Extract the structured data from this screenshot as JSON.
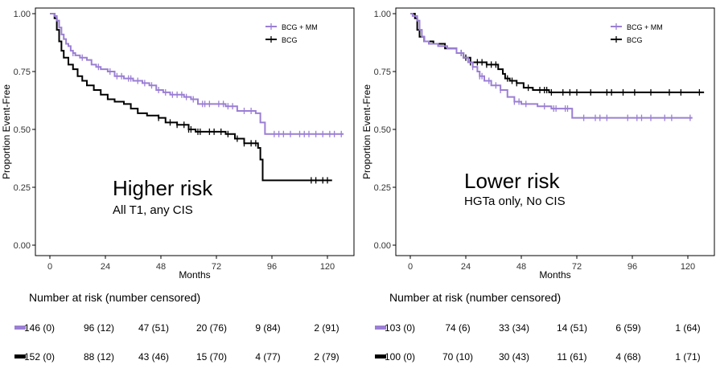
{
  "colors": {
    "bcg_mm": "#9b7fd4",
    "bcg": "#000000",
    "axis": "#000000"
  },
  "chart_data": [
    {
      "type": "line",
      "subtype": "kaplan-meier",
      "xlabel": "Months",
      "ylabel": "Proportion Event-Free",
      "xlim": [
        0,
        126
      ],
      "ylim": [
        0,
        1
      ],
      "xticks": [
        0,
        24,
        48,
        72,
        96,
        120
      ],
      "yticks": [
        0.0,
        0.25,
        0.5,
        0.75,
        1.0
      ],
      "ytick_labels": [
        "0.00",
        "0.25",
        "0.50",
        "0.75",
        "1.00"
      ],
      "annotation_title": "Higher risk",
      "annotation_subtitle": "All T1, any CIS",
      "legend_position": "top-right",
      "series": [
        {
          "name": "BCG + MM",
          "color": "#9b7fd4",
          "steps": [
            [
              0,
              1.0
            ],
            [
              1,
              1.0
            ],
            [
              2,
              0.99
            ],
            [
              3,
              0.97
            ],
            [
              4,
              0.94
            ],
            [
              5,
              0.91
            ],
            [
              6,
              0.89
            ],
            [
              7,
              0.87
            ],
            [
              8,
              0.86
            ],
            [
              9,
              0.84
            ],
            [
              10,
              0.83
            ],
            [
              11,
              0.82
            ],
            [
              13,
              0.81
            ],
            [
              16,
              0.8
            ],
            [
              18,
              0.78
            ],
            [
              20,
              0.77
            ],
            [
              22,
              0.76
            ],
            [
              25,
              0.75
            ],
            [
              28,
              0.73
            ],
            [
              32,
              0.72
            ],
            [
              36,
              0.71
            ],
            [
              40,
              0.7
            ],
            [
              43,
              0.69
            ],
            [
              46,
              0.67
            ],
            [
              49,
              0.66
            ],
            [
              52,
              0.65
            ],
            [
              58,
              0.64
            ],
            [
              61,
              0.63
            ],
            [
              64,
              0.61
            ],
            [
              76,
              0.6
            ],
            [
              81,
              0.58
            ],
            [
              89,
              0.57
            ],
            [
              91,
              0.53
            ],
            [
              93,
              0.48
            ],
            [
              127,
              0.48
            ]
          ],
          "censor_times": [
            10,
            14,
            21,
            26,
            29,
            31,
            34,
            35,
            38,
            41,
            44,
            47,
            50,
            53,
            55,
            57,
            59,
            62,
            66,
            67,
            69,
            73,
            75,
            77,
            79,
            84,
            87,
            97,
            99,
            101,
            104,
            108,
            110,
            112,
            115,
            118,
            121,
            123,
            126
          ]
        },
        {
          "name": "BCG",
          "color": "#000000",
          "steps": [
            [
              0,
              1.0
            ],
            [
              1,
              1.0
            ],
            [
              2,
              0.98
            ],
            [
              3,
              0.93
            ],
            [
              4,
              0.88
            ],
            [
              5,
              0.84
            ],
            [
              6,
              0.81
            ],
            [
              8,
              0.78
            ],
            [
              10,
              0.76
            ],
            [
              12,
              0.73
            ],
            [
              14,
              0.71
            ],
            [
              16,
              0.69
            ],
            [
              19,
              0.67
            ],
            [
              22,
              0.65
            ],
            [
              25,
              0.63
            ],
            [
              28,
              0.62
            ],
            [
              32,
              0.61
            ],
            [
              35,
              0.59
            ],
            [
              38,
              0.57
            ],
            [
              42,
              0.56
            ],
            [
              47,
              0.55
            ],
            [
              50,
              0.53
            ],
            [
              55,
              0.52
            ],
            [
              60,
              0.5
            ],
            [
              63,
              0.49
            ],
            [
              76,
              0.48
            ],
            [
              80,
              0.46
            ],
            [
              84,
              0.44
            ],
            [
              90,
              0.42
            ],
            [
              91,
              0.37
            ],
            [
              92,
              0.28
            ],
            [
              122,
              0.28
            ]
          ],
          "censor_times": [
            47,
            52,
            55,
            58,
            60,
            61,
            64,
            65,
            69,
            71,
            74,
            77,
            81,
            84,
            87,
            89,
            113,
            115,
            118,
            120
          ]
        }
      ],
      "risk_table": {
        "title": "Number at risk (number censored)",
        "rows": [
          {
            "series": "BCG + MM",
            "color": "#9b7fd4",
            "values": [
              "146 (0)",
              "96 (12)",
              "47 (51)",
              "20 (76)",
              "9 (84)",
              "2 (91)"
            ]
          },
          {
            "series": "BCG",
            "color": "#000000",
            "values": [
              "152 (0)",
              "88 (12)",
              "43 (46)",
              "15 (70)",
              "4 (77)",
              "2 (79)"
            ]
          }
        ]
      }
    },
    {
      "type": "line",
      "subtype": "kaplan-meier",
      "xlabel": "Months",
      "ylabel": "Proportion Event-Free",
      "xlim": [
        0,
        126
      ],
      "ylim": [
        0,
        1
      ],
      "xticks": [
        0,
        24,
        48,
        72,
        96,
        120
      ],
      "yticks": [
        0.0,
        0.25,
        0.5,
        0.75,
        1.0
      ],
      "ytick_labels": [
        "0.00",
        "0.25",
        "0.50",
        "0.75",
        "1.00"
      ],
      "annotation_title": "Lower risk",
      "annotation_subtitle": "HGTa only, No CIS",
      "legend_position": "top-right",
      "series": [
        {
          "name": "BCG + MM",
          "color": "#9b7fd4",
          "steps": [
            [
              0,
              1.0
            ],
            [
              1,
              0.99
            ],
            [
              3,
              0.97
            ],
            [
              4,
              0.93
            ],
            [
              5,
              0.9
            ],
            [
              6,
              0.88
            ],
            [
              8,
              0.87
            ],
            [
              12,
              0.86
            ],
            [
              16,
              0.85
            ],
            [
              20,
              0.83
            ],
            [
              23,
              0.81
            ],
            [
              25,
              0.79
            ],
            [
              27,
              0.77
            ],
            [
              29,
              0.75
            ],
            [
              30,
              0.73
            ],
            [
              32,
              0.71
            ],
            [
              35,
              0.69
            ],
            [
              39,
              0.67
            ],
            [
              42,
              0.64
            ],
            [
              45,
              0.62
            ],
            [
              48,
              0.61
            ],
            [
              55,
              0.6
            ],
            [
              61,
              0.59
            ],
            [
              70,
              0.55
            ],
            [
              122,
              0.55
            ]
          ],
          "censor_times": [
            22,
            27,
            30,
            31,
            34,
            37,
            39,
            45,
            47,
            50,
            58,
            62,
            63,
            67,
            68,
            75,
            80,
            82,
            85,
            94,
            98,
            100,
            104,
            110,
            113,
            121
          ]
        },
        {
          "name": "BCG",
          "color": "#000000",
          "steps": [
            [
              0,
              1.0
            ],
            [
              1,
              1.0
            ],
            [
              2,
              0.98
            ],
            [
              3,
              0.93
            ],
            [
              4,
              0.9
            ],
            [
              6,
              0.88
            ],
            [
              10,
              0.87
            ],
            [
              15,
              0.85
            ],
            [
              20,
              0.83
            ],
            [
              23,
              0.81
            ],
            [
              26,
              0.79
            ],
            [
              33,
              0.78
            ],
            [
              38,
              0.76
            ],
            [
              40,
              0.74
            ],
            [
              41,
              0.72
            ],
            [
              43,
              0.71
            ],
            [
              46,
              0.7
            ],
            [
              49,
              0.68
            ],
            [
              53,
              0.67
            ],
            [
              60,
              0.66
            ],
            [
              127,
              0.66
            ]
          ],
          "censor_times": [
            22,
            24,
            26,
            29,
            31,
            33,
            35,
            37,
            42,
            44,
            46,
            51,
            56,
            58,
            59,
            61,
            66,
            69,
            72,
            78,
            85,
            87,
            92,
            97,
            104,
            112,
            117,
            125
          ]
        }
      ],
      "risk_table": {
        "title": "Number at risk (number censored)",
        "rows": [
          {
            "series": "BCG + MM",
            "color": "#9b7fd4",
            "values": [
              "103 (0)",
              "74 (6)",
              "33 (34)",
              "14 (51)",
              "6 (59)",
              "1 (64)"
            ]
          },
          {
            "series": "BCG",
            "color": "#000000",
            "values": [
              "100 (0)",
              "70 (10)",
              "30 (43)",
              "11 (61)",
              "4 (68)",
              "1 (71)"
            ]
          }
        ]
      }
    }
  ]
}
